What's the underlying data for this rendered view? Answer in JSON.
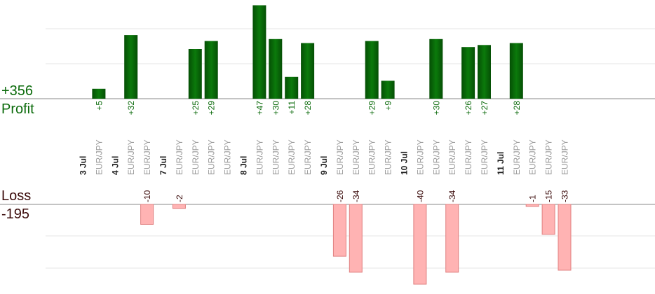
{
  "summary": {
    "profit_total": "+356",
    "profit_label": "Profit",
    "loss_label": "Loss",
    "loss_total": "-195"
  },
  "colors": {
    "profit_bar": "#0a6a0a",
    "profit_text": "#0a6a0a",
    "loss_bar": "#ffb3b3",
    "loss_border": "#e08080",
    "loss_text": "#3a0a0a",
    "grid": "#e6e6e6",
    "axis": "#888888"
  },
  "chart_data": {
    "type": "bar",
    "profit_scale_max": 50,
    "loss_scale_max": 40,
    "categories": [
      {
        "kind": "date",
        "label": "3 Jul"
      },
      {
        "kind": "pair",
        "label": "EUR/JPY",
        "value": 5,
        "value_label": "+5"
      },
      {
        "kind": "date",
        "label": "4 Jul"
      },
      {
        "kind": "pair",
        "label": "EUR/JPY",
        "value": 32,
        "value_label": "+32"
      },
      {
        "kind": "pair",
        "label": "EUR/JPY",
        "value": -10,
        "value_label": "-10"
      },
      {
        "kind": "date",
        "label": "7 Jul"
      },
      {
        "kind": "pair",
        "label": "EUR/JPY",
        "value": -2,
        "value_label": "-2"
      },
      {
        "kind": "pair",
        "label": "EUR/JPY",
        "value": 25,
        "value_label": "+25"
      },
      {
        "kind": "pair",
        "label": "EUR/JPY",
        "value": 29,
        "value_label": "+29"
      },
      {
        "kind": "pair",
        "label": "EUR/JPY"
      },
      {
        "kind": "date",
        "label": "8 Jul"
      },
      {
        "kind": "pair",
        "label": "EUR/JPY",
        "value": 47,
        "value_label": "+47"
      },
      {
        "kind": "pair",
        "label": "EUR/JPY",
        "value": 30,
        "value_label": "+30"
      },
      {
        "kind": "pair",
        "label": "EUR/JPY",
        "value": 11,
        "value_label": "+11"
      },
      {
        "kind": "pair",
        "label": "EUR/JPY",
        "value": 28,
        "value_label": "+28"
      },
      {
        "kind": "date",
        "label": "9 Jul"
      },
      {
        "kind": "pair",
        "label": "EUR/JPY",
        "value": -26,
        "value_label": "-26"
      },
      {
        "kind": "pair",
        "label": "EUR/JPY",
        "value": -34,
        "value_label": "-34"
      },
      {
        "kind": "pair",
        "label": "EUR/JPY",
        "value": 29,
        "value_label": "+29"
      },
      {
        "kind": "pair",
        "label": "EUR/JPY",
        "value": 9,
        "value_label": "+9"
      },
      {
        "kind": "date",
        "label": "10 Jul"
      },
      {
        "kind": "pair",
        "label": "EUR/JPY",
        "value": -40,
        "value_label": "-40"
      },
      {
        "kind": "pair",
        "label": "EUR/JPY",
        "value": 30,
        "value_label": "+30"
      },
      {
        "kind": "pair",
        "label": "EUR/JPY",
        "value": -34,
        "value_label": "-34"
      },
      {
        "kind": "pair",
        "label": "EUR/JPY",
        "value": 26,
        "value_label": "+26"
      },
      {
        "kind": "pair",
        "label": "EUR/JPY",
        "value": 27,
        "value_label": "+27"
      },
      {
        "kind": "date",
        "label": "11 Jul"
      },
      {
        "kind": "pair",
        "label": "EUR/JPY",
        "value": 28,
        "value_label": "+28"
      },
      {
        "kind": "pair",
        "label": "EUR/JPY",
        "value": -1,
        "value_label": "-1"
      },
      {
        "kind": "pair",
        "label": "EUR/JPY",
        "value": -15,
        "value_label": "-15"
      },
      {
        "kind": "pair",
        "label": "EUR/JPY",
        "value": -33,
        "value_label": "-33"
      }
    ]
  }
}
